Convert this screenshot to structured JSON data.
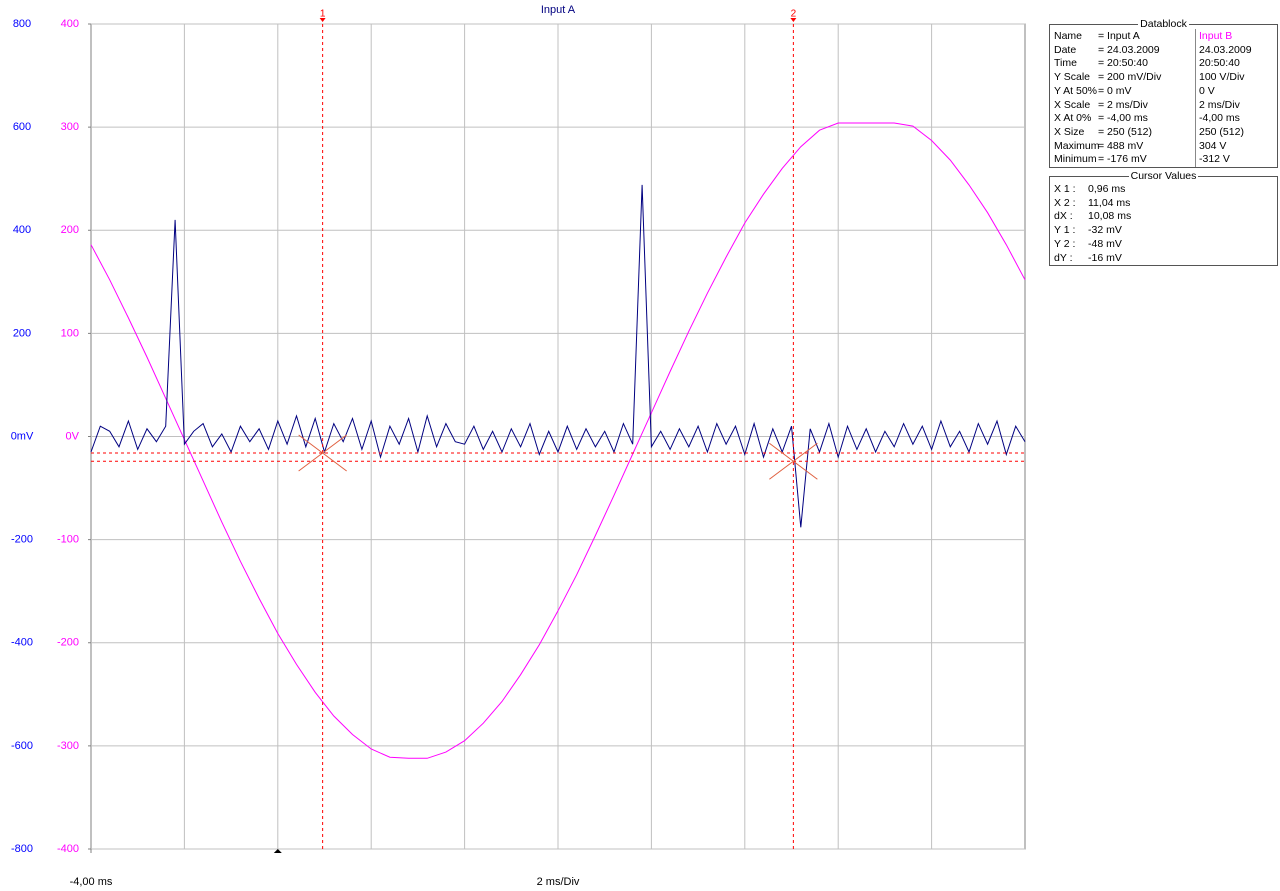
{
  "chart_data": {
    "type": "line",
    "title": "Input A",
    "x_label": "2 ms/Div",
    "xlim": [
      -4,
      16
    ],
    "xticks": [
      {
        "value": -4,
        "label": "-4,00 ms"
      }
    ],
    "ylim": [
      -800,
      800
    ],
    "yticks": [
      800,
      600,
      400,
      200,
      {
        "value": 0,
        "label": "0mV"
      },
      -200,
      -400,
      -600,
      -800
    ],
    "y2lim": [
      -400,
      400
    ],
    "y2ticks": [
      400,
      300,
      200,
      100,
      {
        "value": 0,
        "label": "0V"
      },
      -100,
      -200,
      -300,
      -400
    ],
    "ycolor": "#0000ff",
    "y2color": "#ff00ff",
    "grid": true,
    "series": [
      {
        "name": "Input A",
        "color": "#000080",
        "x": [
          -4,
          -3.8,
          -3.6,
          -3.4,
          -3.2,
          -3,
          -2.8,
          -2.6,
          -2.4,
          -2.2,
          -2,
          -1.8,
          -1.6,
          -1.4,
          -1.2,
          -1,
          -0.8,
          -0.6,
          -0.4,
          -0.2,
          0,
          0.2,
          0.4,
          0.6,
          0.8,
          1,
          1.2,
          1.4,
          1.6,
          1.8,
          2,
          2.2,
          2.4,
          2.6,
          2.8,
          3,
          3.2,
          3.4,
          3.6,
          3.8,
          4,
          4.2,
          4.4,
          4.6,
          4.8,
          5,
          5.2,
          5.4,
          5.6,
          5.8,
          6,
          6.2,
          6.4,
          6.6,
          6.8,
          7,
          7.2,
          7.4,
          7.6,
          7.8,
          8,
          8.2,
          8.4,
          8.6,
          8.8,
          9,
          9.2,
          9.4,
          9.6,
          9.8,
          10,
          10.2,
          10.4,
          10.6,
          10.8,
          11,
          11.2,
          11.4,
          11.6,
          11.8,
          12,
          12.2,
          12.4,
          12.6,
          12.8,
          13,
          13.2,
          13.4,
          13.6,
          13.8,
          14,
          14.2,
          14.4,
          14.6,
          14.8,
          15,
          15.2,
          15.4,
          15.6,
          15.8,
          16
        ],
        "values": [
          -30,
          20,
          10,
          -20,
          30,
          -25,
          15,
          -10,
          20,
          420,
          -15,
          10,
          25,
          -20,
          5,
          -30,
          20,
          -10,
          15,
          -25,
          30,
          -15,
          40,
          -20,
          35,
          -30,
          25,
          -10,
          35,
          -25,
          30,
          -40,
          20,
          -15,
          35,
          -30,
          40,
          -20,
          25,
          -10,
          -15,
          20,
          -25,
          10,
          -30,
          15,
          -20,
          25,
          -35,
          10,
          -30,
          20,
          -25,
          15,
          -20,
          10,
          -30,
          25,
          -15,
          488,
          -20,
          10,
          -25,
          15,
          -20,
          20,
          -30,
          25,
          -15,
          20,
          -35,
          25,
          -40,
          15,
          -30,
          20,
          -176,
          15,
          -30,
          25,
          -40,
          20,
          -25,
          15,
          -30,
          10,
          -20,
          25,
          -15,
          20,
          -25,
          30,
          -20,
          10,
          -30,
          25,
          -15,
          30,
          -35,
          20,
          -10
        ]
      },
      {
        "name": "Input B",
        "color": "#ff00ff",
        "axis": "y2",
        "x": [
          -4,
          -3.6,
          -3.2,
          -2.8,
          -2.4,
          -2,
          -1.6,
          -1.2,
          -0.8,
          -0.4,
          0,
          0.4,
          0.8,
          1.2,
          1.6,
          2,
          2.4,
          2.8,
          3.2,
          3.6,
          4,
          4.4,
          4.8,
          5.2,
          5.6,
          6,
          6.4,
          6.8,
          7.2,
          7.6,
          8,
          8.4,
          8.8,
          9.2,
          9.6,
          10,
          10.4,
          10.8,
          11.2,
          11.6,
          12,
          12.4,
          12.8,
          13.2,
          13.6,
          14,
          14.4,
          14.8,
          15.2,
          15.6,
          16
        ],
        "values": [
          186,
          152,
          115,
          77,
          37,
          -3,
          -43,
          -83,
          -121,
          -157,
          -191,
          -221,
          -248,
          -271,
          -289,
          -303,
          -311,
          -312,
          -312,
          -306,
          -295,
          -278,
          -257,
          -231,
          -202,
          -169,
          -134,
          -96,
          -57,
          -17,
          23,
          63,
          102,
          139,
          174,
          207,
          235,
          260,
          281,
          297,
          304,
          304,
          304,
          304,
          301,
          287,
          268,
          244,
          217,
          186,
          152
        ]
      }
    ],
    "cursors": {
      "labels": [
        "1",
        "2"
      ],
      "x": [
        0.96,
        11.04
      ],
      "y": [
        -32,
        -48
      ],
      "color": "#ff0000"
    }
  },
  "datablock": {
    "title": "Datablock",
    "rows": [
      {
        "label": "Name",
        "a": "= Input A",
        "b": "Input B"
      },
      {
        "label": "Date",
        "a": "= 24.03.2009",
        "b": "24.03.2009"
      },
      {
        "label": "Time",
        "a": "= 20:50:40",
        "b": "20:50:40"
      },
      {
        "label": "Y Scale",
        "a": "= 200 mV/Div",
        "b": "100 V/Div"
      },
      {
        "label": "Y At 50%",
        "a": "= 0 mV",
        "b": "0 V"
      },
      {
        "label": "X Scale",
        "a": "= 2 ms/Div",
        "b": "2 ms/Div"
      },
      {
        "label": "X At 0%",
        "a": "= -4,00 ms",
        "b": "-4,00 ms"
      },
      {
        "label": "X Size",
        "a": "= 250 (512)",
        "b": "250 (512)"
      },
      {
        "label": "Maximum",
        "a": "= 488 mV",
        "b": "304 V"
      },
      {
        "label": "Minimum",
        "a": "= -176 mV",
        "b": "-312 V"
      }
    ]
  },
  "cursor_values": {
    "title": "Cursor Values",
    "rows": [
      {
        "label": "X 1 :",
        "value": "0,96 ms"
      },
      {
        "label": "X 2 :",
        "value": "11,04 ms"
      },
      {
        "label": "dX :",
        "value": "10,08 ms"
      },
      {
        "label": "Y 1 :",
        "value": "-32 mV"
      },
      {
        "label": "Y 2 :",
        "value": "-48 mV"
      },
      {
        "label": "dY :",
        "value": "-16 mV"
      }
    ]
  }
}
